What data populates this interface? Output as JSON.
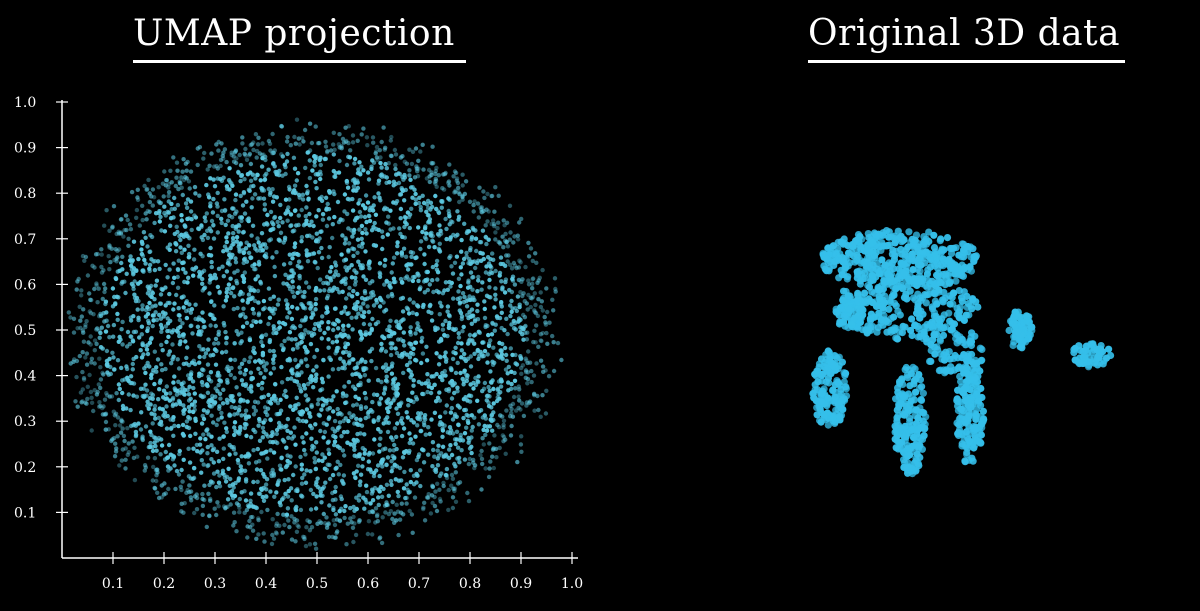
{
  "chart_data": [
    {
      "type": "scatter",
      "title": "UMAP projection",
      "xlim": [
        0,
        1.0
      ],
      "ylim": [
        0,
        1.0
      ],
      "xticks": [
        "0.1",
        "0.2",
        "0.3",
        "0.4",
        "0.5",
        "0.6",
        "0.7",
        "0.8",
        "0.9",
        "1.0"
      ],
      "yticks": [
        "0.1",
        "0.2",
        "0.3",
        "0.4",
        "0.5",
        "0.6",
        "0.7",
        "0.8",
        "0.9",
        "1.0"
      ],
      "grid": false,
      "point_color": "#5cc8e0",
      "cloud": {
        "shape": "disk",
        "center": [
          0.49,
          0.49
        ],
        "radius_x": 0.49,
        "radius_y": 0.47,
        "n_points": 4200
      }
    },
    {
      "type": "scatter",
      "title": "Original 3D data",
      "axes": false,
      "point_color": "#35bfea",
      "cloud": {
        "shape": "mammoth-like figure",
        "n_points": 1400
      }
    }
  ]
}
